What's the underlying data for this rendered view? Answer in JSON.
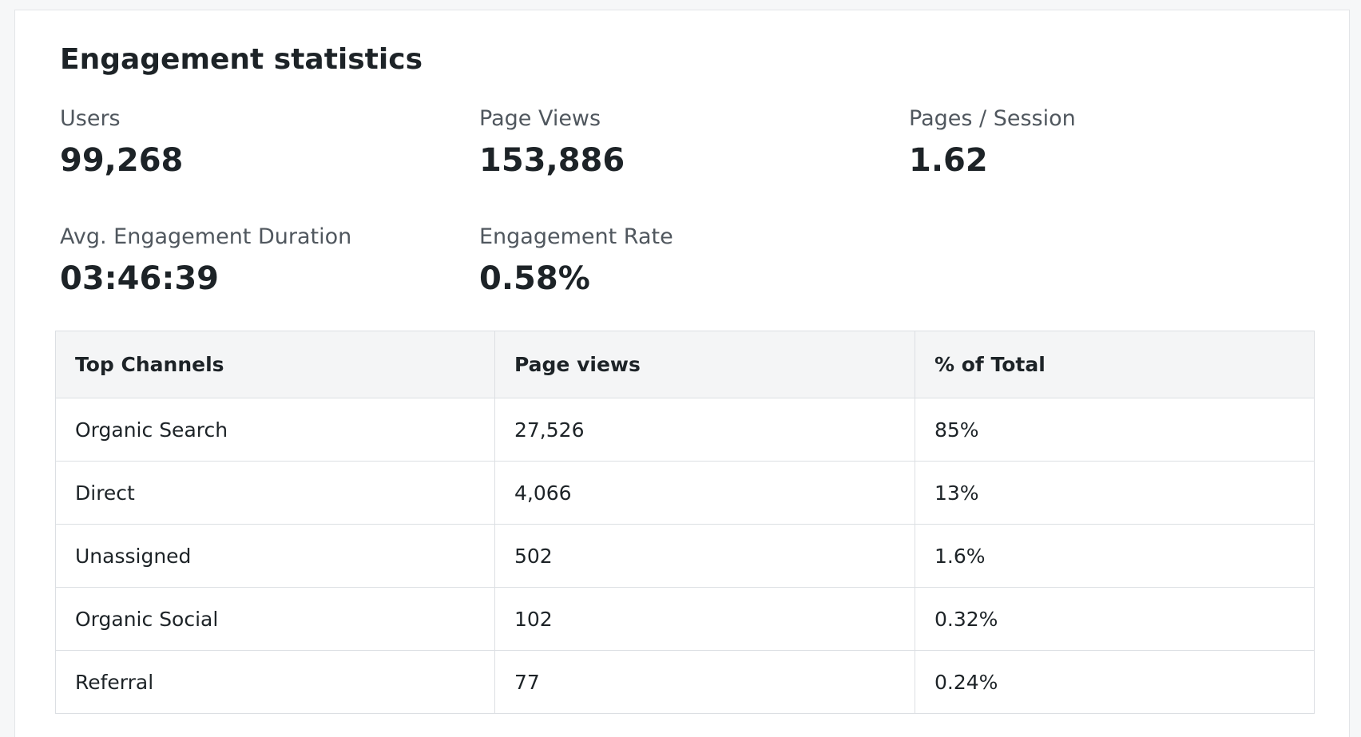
{
  "title": "Engagement statistics",
  "stats": {
    "users": {
      "label": "Users",
      "value": "99,268"
    },
    "page_views": {
      "label": "Page Views",
      "value": "153,886"
    },
    "pages_per_session": {
      "label": "Pages / Session",
      "value": "1.62"
    },
    "avg_engagement_duration": {
      "label": "Avg. Engagement Duration",
      "value": "03:46:39"
    },
    "engagement_rate": {
      "label": "Engagement Rate",
      "value": "0.58%"
    }
  },
  "table": {
    "headers": [
      "Top Channels",
      "Page views",
      "% of Total"
    ],
    "rows": [
      [
        "Organic Search",
        "27,526",
        "85%"
      ],
      [
        "Direct",
        "4,066",
        "13%"
      ],
      [
        "Unassigned",
        "502",
        "1.6%"
      ],
      [
        "Organic Social",
        "102",
        "0.32%"
      ],
      [
        "Referral",
        "77",
        "0.24%"
      ]
    ]
  }
}
